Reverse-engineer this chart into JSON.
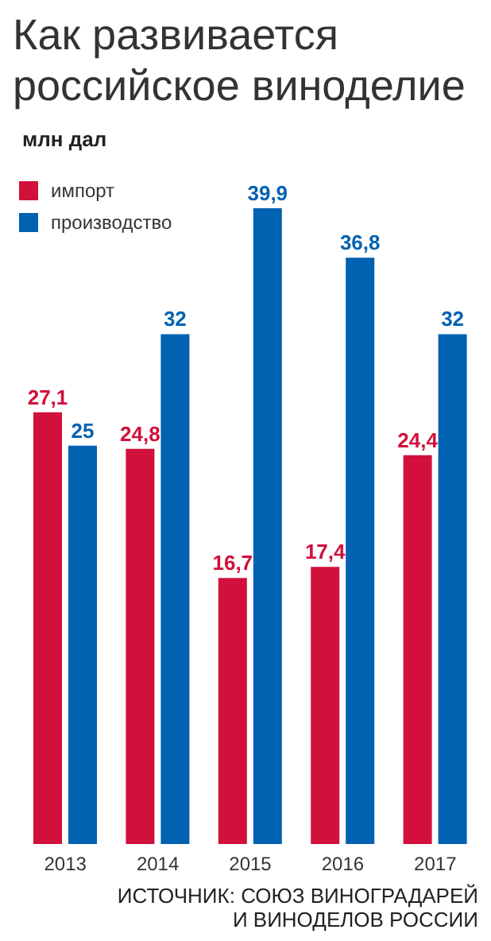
{
  "chart_data": {
    "type": "bar",
    "title": "Как развивается российское виноделие",
    "ylabel": "млн дал",
    "categories": [
      "2013",
      "2014",
      "2015",
      "2016",
      "2017"
    ],
    "series": [
      {
        "name": "импорт",
        "color": "#d1103c",
        "values": [
          27.1,
          24.8,
          16.7,
          17.4,
          24.4
        ],
        "value_labels": [
          "27,1",
          "24,8",
          "16,7",
          "17,4",
          "24,4"
        ]
      },
      {
        "name": "производство",
        "color": "#0062b1",
        "values": [
          25,
          32,
          39.9,
          36.8,
          32
        ],
        "value_labels": [
          "25",
          "32",
          "39,9",
          "36,8",
          "32"
        ]
      }
    ],
    "legend": "top left",
    "grid": false,
    "annotations": [
      "ИСТОЧНИК: СОЮЗ ВИНОГРАДАРЕЙ И ВИНОДЕЛОВ РОССИИ"
    ]
  }
}
